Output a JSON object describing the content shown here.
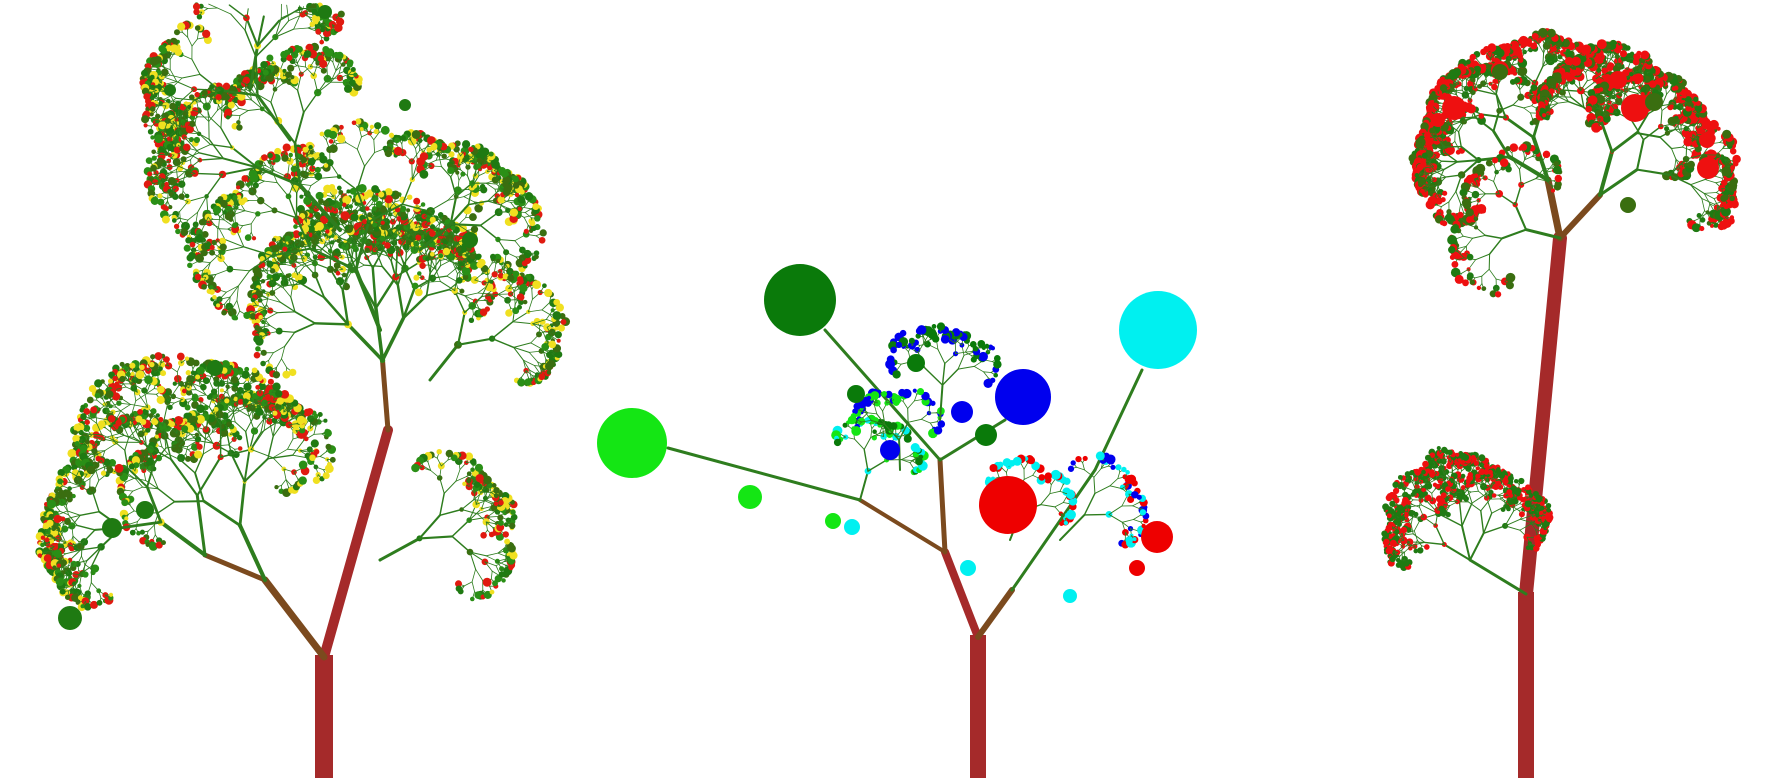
{
  "scene": {
    "description_free": true,
    "background": "#ffffff",
    "trunk_color": "#a52a2a",
    "branch_color": "#7b4a1e",
    "twig_color": "#2e7d1e",
    "trees": [
      {
        "id": "left-tree",
        "leaf_colors": [
          "#1f7a12",
          "#2a8f16",
          "#e01a10",
          "#f0e020",
          "#3a6e10"
        ]
      },
      {
        "id": "middle-tree",
        "leaf_colors": [
          "#14e614",
          "#0a7a0a",
          "#0000ee",
          "#ee0000",
          "#00f0f0"
        ]
      },
      {
        "id": "right-tree",
        "leaf_colors": [
          "#ee1010",
          "#1f7a12",
          "#3a6e10"
        ]
      }
    ]
  }
}
